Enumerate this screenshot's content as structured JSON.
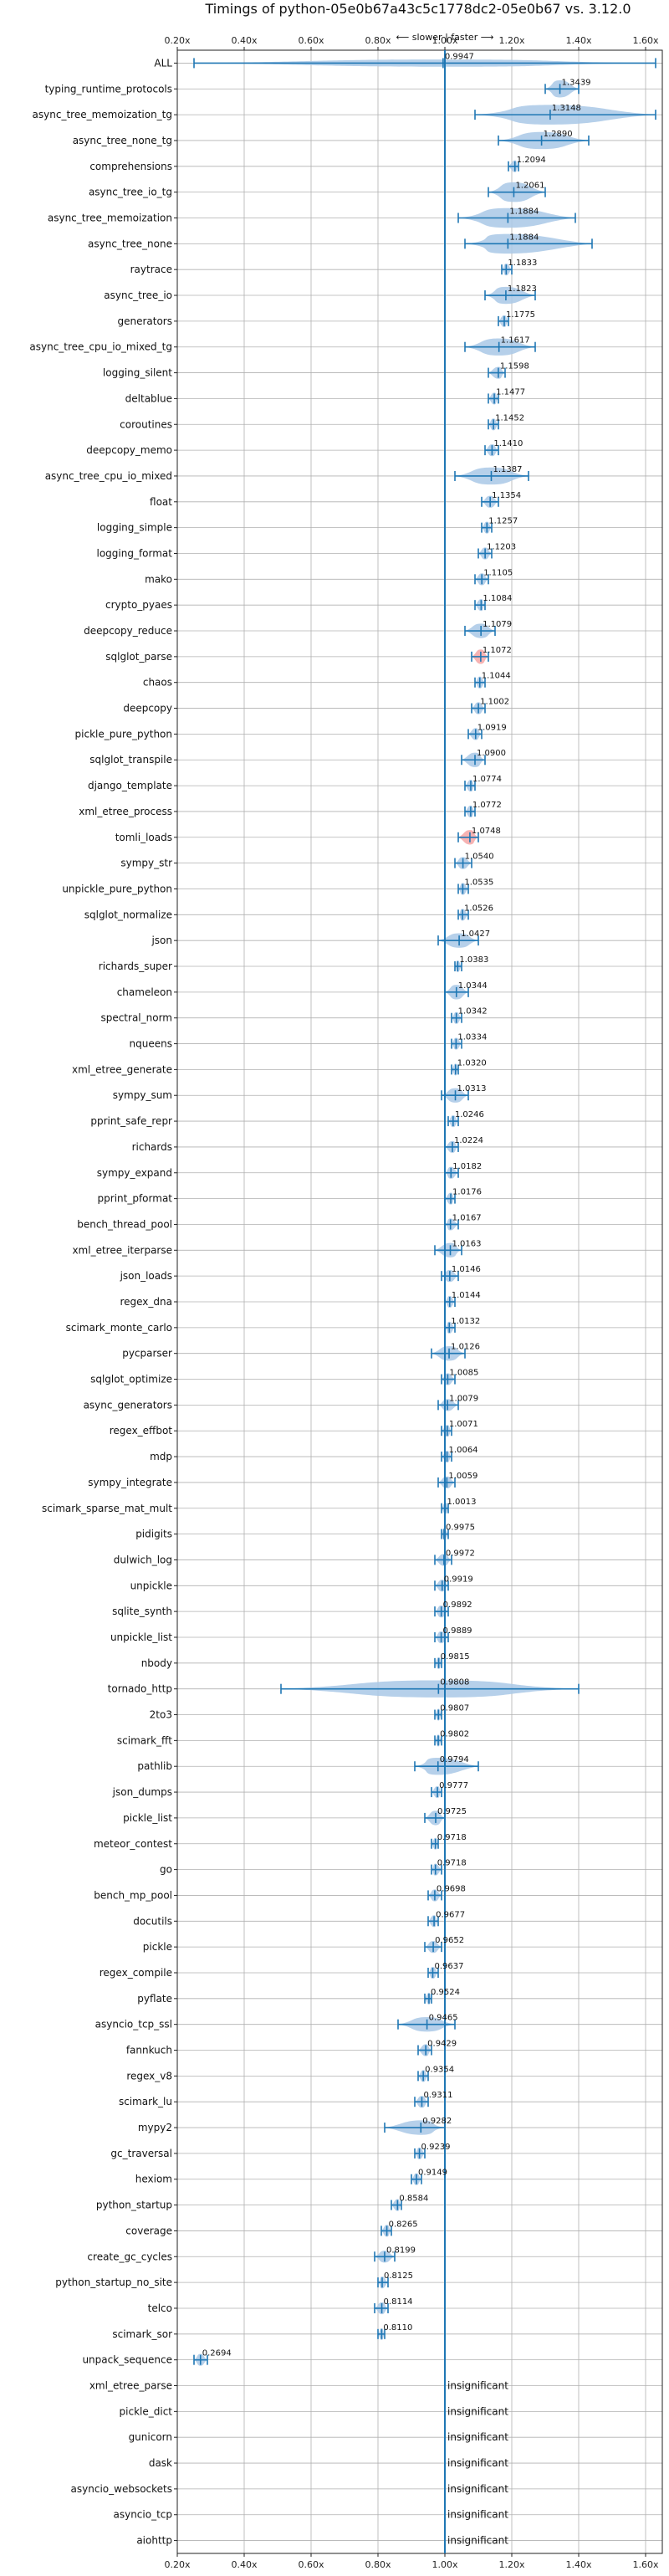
{
  "chart_data": {
    "type": "violin",
    "title": "Timings of python-05e0b67a43c5c1778dc2-05e0b67 vs. 3.12.0",
    "direction_note": "⟵ slower | faster ⟶",
    "xlim": [
      0.2,
      1.65
    ],
    "xticks": [
      0.2,
      0.4,
      0.6,
      0.8,
      1.0,
      1.2,
      1.4,
      1.6
    ],
    "xtick_labels": [
      "0.20x",
      "0.40x",
      "0.60x",
      "0.80x",
      "1.00x",
      "1.20x",
      "1.40x",
      "1.60x"
    ],
    "insignificant_text": "insignificant",
    "colors": {
      "violin": "#a9c8e6",
      "whisker": "#1f77b4",
      "ref_line": "#1f77b4",
      "grid": "#b0b0b0",
      "highlight": "#f4a6a6"
    },
    "benchmarks": [
      {
        "name": "ALL",
        "label": "0.9947",
        "value": 0.9947,
        "lo": 0.25,
        "hi": 1.63,
        "spread": 0.12
      },
      {
        "name": "typing_runtime_protocols",
        "label": "1.3439",
        "value": 1.3439,
        "lo": 1.3,
        "hi": 1.4,
        "spread": 0.5
      },
      {
        "name": "async_tree_memoization_tg",
        "label": "1.3148",
        "value": 1.3148,
        "lo": 1.09,
        "hi": 1.63,
        "spread": 0.6
      },
      {
        "name": "async_tree_none_tg",
        "label": "1.2890",
        "value": 1.289,
        "lo": 1.16,
        "hi": 1.43,
        "spread": 0.5
      },
      {
        "name": "comprehensions",
        "label": "1.2094",
        "value": 1.2094,
        "lo": 1.19,
        "hi": 1.22,
        "spread": 0.3
      },
      {
        "name": "async_tree_io_tg",
        "label": "1.2061",
        "value": 1.2061,
        "lo": 1.13,
        "hi": 1.3,
        "spread": 0.6
      },
      {
        "name": "async_tree_memoization",
        "label": "1.1884",
        "value": 1.1884,
        "lo": 1.04,
        "hi": 1.39,
        "spread": 0.6
      },
      {
        "name": "async_tree_none",
        "label": "1.1884",
        "value": 1.1884,
        "lo": 1.06,
        "hi": 1.44,
        "spread": 0.6
      },
      {
        "name": "raytrace",
        "label": "1.1833",
        "value": 1.1833,
        "lo": 1.17,
        "hi": 1.2,
        "spread": 0.3
      },
      {
        "name": "async_tree_io",
        "label": "1.1823",
        "value": 1.1823,
        "lo": 1.12,
        "hi": 1.27,
        "spread": 0.5
      },
      {
        "name": "generators",
        "label": "1.1775",
        "value": 1.1775,
        "lo": 1.16,
        "hi": 1.19,
        "spread": 0.3
      },
      {
        "name": "async_tree_cpu_io_mixed_tg",
        "label": "1.1617",
        "value": 1.1617,
        "lo": 1.06,
        "hi": 1.27,
        "spread": 0.5
      },
      {
        "name": "logging_silent",
        "label": "1.1598",
        "value": 1.1598,
        "lo": 1.13,
        "hi": 1.18,
        "spread": 0.3
      },
      {
        "name": "deltablue",
        "label": "1.1477",
        "value": 1.1477,
        "lo": 1.13,
        "hi": 1.16,
        "spread": 0.3
      },
      {
        "name": "coroutines",
        "label": "1.1452",
        "value": 1.1452,
        "lo": 1.13,
        "hi": 1.16,
        "spread": 0.3
      },
      {
        "name": "deepcopy_memo",
        "label": "1.1410",
        "value": 1.141,
        "lo": 1.12,
        "hi": 1.16,
        "spread": 0.3
      },
      {
        "name": "async_tree_cpu_io_mixed",
        "label": "1.1387",
        "value": 1.1387,
        "lo": 1.03,
        "hi": 1.25,
        "spread": 0.5
      },
      {
        "name": "float",
        "label": "1.1354",
        "value": 1.1354,
        "lo": 1.11,
        "hi": 1.16,
        "spread": 0.3
      },
      {
        "name": "logging_simple",
        "label": "1.1257",
        "value": 1.1257,
        "lo": 1.11,
        "hi": 1.14,
        "spread": 0.3
      },
      {
        "name": "logging_format",
        "label": "1.1203",
        "value": 1.1203,
        "lo": 1.1,
        "hi": 1.14,
        "spread": 0.3
      },
      {
        "name": "mako",
        "label": "1.1105",
        "value": 1.1105,
        "lo": 1.09,
        "hi": 1.13,
        "spread": 0.3
      },
      {
        "name": "crypto_pyaes",
        "label": "1.1084",
        "value": 1.1084,
        "lo": 1.09,
        "hi": 1.12,
        "spread": 0.3
      },
      {
        "name": "deepcopy_reduce",
        "label": "1.1079",
        "value": 1.1079,
        "lo": 1.06,
        "hi": 1.15,
        "spread": 0.4
      },
      {
        "name": "sqlglot_parse",
        "label": "1.1072",
        "value": 1.1072,
        "lo": 1.08,
        "hi": 1.13,
        "spread": 0.4,
        "highlight": true
      },
      {
        "name": "chaos",
        "label": "1.1044",
        "value": 1.1044,
        "lo": 1.09,
        "hi": 1.12,
        "spread": 0.3
      },
      {
        "name": "deepcopy",
        "label": "1.1002",
        "value": 1.1002,
        "lo": 1.08,
        "hi": 1.12,
        "spread": 0.3
      },
      {
        "name": "pickle_pure_python",
        "label": "1.0919",
        "value": 1.0919,
        "lo": 1.07,
        "hi": 1.11,
        "spread": 0.3
      },
      {
        "name": "sqlglot_transpile",
        "label": "1.0900",
        "value": 1.09,
        "lo": 1.05,
        "hi": 1.12,
        "spread": 0.4
      },
      {
        "name": "django_template",
        "label": "1.0774",
        "value": 1.0774,
        "lo": 1.06,
        "hi": 1.09,
        "spread": 0.3
      },
      {
        "name": "xml_etree_process",
        "label": "1.0772",
        "value": 1.0772,
        "lo": 1.06,
        "hi": 1.09,
        "spread": 0.3
      },
      {
        "name": "tomli_loads",
        "label": "1.0748",
        "value": 1.0748,
        "lo": 1.04,
        "hi": 1.1,
        "spread": 0.4,
        "highlight": true
      },
      {
        "name": "sympy_str",
        "label": "1.0540",
        "value": 1.054,
        "lo": 1.03,
        "hi": 1.08,
        "spread": 0.3
      },
      {
        "name": "unpickle_pure_python",
        "label": "1.0535",
        "value": 1.0535,
        "lo": 1.04,
        "hi": 1.07,
        "spread": 0.3
      },
      {
        "name": "sqlglot_normalize",
        "label": "1.0526",
        "value": 1.0526,
        "lo": 1.04,
        "hi": 1.07,
        "spread": 0.3
      },
      {
        "name": "json",
        "label": "1.0427",
        "value": 1.0427,
        "lo": 0.98,
        "hi": 1.1,
        "spread": 0.4
      },
      {
        "name": "richards_super",
        "label": "1.0383",
        "value": 1.0383,
        "lo": 1.03,
        "hi": 1.05,
        "spread": 0.3
      },
      {
        "name": "chameleon",
        "label": "1.0344",
        "value": 1.0344,
        "lo": 1.0,
        "hi": 1.07,
        "spread": 0.4
      },
      {
        "name": "spectral_norm",
        "label": "1.0342",
        "value": 1.0342,
        "lo": 1.02,
        "hi": 1.05,
        "spread": 0.3
      },
      {
        "name": "nqueens",
        "label": "1.0334",
        "value": 1.0334,
        "lo": 1.02,
        "hi": 1.05,
        "spread": 0.3
      },
      {
        "name": "xml_etree_generate",
        "label": "1.0320",
        "value": 1.032,
        "lo": 1.02,
        "hi": 1.04,
        "spread": 0.3
      },
      {
        "name": "sympy_sum",
        "label": "1.0313",
        "value": 1.0313,
        "lo": 0.99,
        "hi": 1.07,
        "spread": 0.4
      },
      {
        "name": "pprint_safe_repr",
        "label": "1.0246",
        "value": 1.0246,
        "lo": 1.01,
        "hi": 1.04,
        "spread": 0.3
      },
      {
        "name": "richards",
        "label": "1.0224",
        "value": 1.0224,
        "lo": 1.0,
        "hi": 1.04,
        "spread": 0.3
      },
      {
        "name": "sympy_expand",
        "label": "1.0182",
        "value": 1.0182,
        "lo": 1.0,
        "hi": 1.04,
        "spread": 0.3
      },
      {
        "name": "pprint_pformat",
        "label": "1.0176",
        "value": 1.0176,
        "lo": 1.0,
        "hi": 1.03,
        "spread": 0.3
      },
      {
        "name": "bench_thread_pool",
        "label": "1.0167",
        "value": 1.0167,
        "lo": 1.0,
        "hi": 1.04,
        "spread": 0.3
      },
      {
        "name": "xml_etree_iterparse",
        "label": "1.0163",
        "value": 1.0163,
        "lo": 0.97,
        "hi": 1.05,
        "spread": 0.4
      },
      {
        "name": "json_loads",
        "label": "1.0146",
        "value": 1.0146,
        "lo": 0.99,
        "hi": 1.04,
        "spread": 0.3
      },
      {
        "name": "regex_dna",
        "label": "1.0144",
        "value": 1.0144,
        "lo": 1.0,
        "hi": 1.03,
        "spread": 0.3
      },
      {
        "name": "scimark_monte_carlo",
        "label": "1.0132",
        "value": 1.0132,
        "lo": 1.0,
        "hi": 1.03,
        "spread": 0.3
      },
      {
        "name": "pycparser",
        "label": "1.0126",
        "value": 1.0126,
        "lo": 0.96,
        "hi": 1.06,
        "spread": 0.4
      },
      {
        "name": "sqlglot_optimize",
        "label": "1.0085",
        "value": 1.0085,
        "lo": 0.99,
        "hi": 1.03,
        "spread": 0.3
      },
      {
        "name": "async_generators",
        "label": "1.0079",
        "value": 1.0079,
        "lo": 0.98,
        "hi": 1.04,
        "spread": 0.3
      },
      {
        "name": "regex_effbot",
        "label": "1.0071",
        "value": 1.0071,
        "lo": 0.99,
        "hi": 1.02,
        "spread": 0.3
      },
      {
        "name": "mdp",
        "label": "1.0064",
        "value": 1.0064,
        "lo": 0.99,
        "hi": 1.02,
        "spread": 0.3
      },
      {
        "name": "sympy_integrate",
        "label": "1.0059",
        "value": 1.0059,
        "lo": 0.98,
        "hi": 1.03,
        "spread": 0.3
      },
      {
        "name": "scimark_sparse_mat_mult",
        "label": "1.0013",
        "value": 1.0013,
        "lo": 0.99,
        "hi": 1.01,
        "spread": 0.3
      },
      {
        "name": "pidigits",
        "label": "0.9975",
        "value": 0.9975,
        "lo": 0.99,
        "hi": 1.01,
        "spread": 0.3
      },
      {
        "name": "dulwich_log",
        "label": "0.9972",
        "value": 0.9972,
        "lo": 0.97,
        "hi": 1.02,
        "spread": 0.3
      },
      {
        "name": "unpickle",
        "label": "0.9919",
        "value": 0.9919,
        "lo": 0.97,
        "hi": 1.01,
        "spread": 0.3
      },
      {
        "name": "sqlite_synth",
        "label": "0.9892",
        "value": 0.9892,
        "lo": 0.97,
        "hi": 1.01,
        "spread": 0.3
      },
      {
        "name": "unpickle_list",
        "label": "0.9889",
        "value": 0.9889,
        "lo": 0.97,
        "hi": 1.01,
        "spread": 0.3
      },
      {
        "name": "nbody",
        "label": "0.9815",
        "value": 0.9815,
        "lo": 0.97,
        "hi": 0.99,
        "spread": 0.3
      },
      {
        "name": "tornado_http",
        "label": "0.9808",
        "value": 0.9808,
        "lo": 0.51,
        "hi": 1.4,
        "spread": 0.5
      },
      {
        "name": "2to3",
        "label": "0.9807",
        "value": 0.9807,
        "lo": 0.97,
        "hi": 0.99,
        "spread": 0.3
      },
      {
        "name": "scimark_fft",
        "label": "0.9802",
        "value": 0.9802,
        "lo": 0.97,
        "hi": 0.99,
        "spread": 0.3
      },
      {
        "name": "pathlib",
        "label": "0.9794",
        "value": 0.9794,
        "lo": 0.91,
        "hi": 1.1,
        "spread": 0.5
      },
      {
        "name": "json_dumps",
        "label": "0.9777",
        "value": 0.9777,
        "lo": 0.96,
        "hi": 0.99,
        "spread": 0.3
      },
      {
        "name": "pickle_list",
        "label": "0.9725",
        "value": 0.9725,
        "lo": 0.94,
        "hi": 1.0,
        "spread": 0.4
      },
      {
        "name": "meteor_contest",
        "label": "0.9718",
        "value": 0.9718,
        "lo": 0.96,
        "hi": 0.98,
        "spread": 0.3
      },
      {
        "name": "go",
        "label": "0.9718",
        "value": 0.9718,
        "lo": 0.96,
        "hi": 0.99,
        "spread": 0.3
      },
      {
        "name": "bench_mp_pool",
        "label": "0.9698",
        "value": 0.9698,
        "lo": 0.95,
        "hi": 0.99,
        "spread": 0.3
      },
      {
        "name": "docutils",
        "label": "0.9677",
        "value": 0.9677,
        "lo": 0.95,
        "hi": 0.98,
        "spread": 0.3
      },
      {
        "name": "pickle",
        "label": "0.9652",
        "value": 0.9652,
        "lo": 0.94,
        "hi": 0.99,
        "spread": 0.3
      },
      {
        "name": "regex_compile",
        "label": "0.9637",
        "value": 0.9637,
        "lo": 0.95,
        "hi": 0.98,
        "spread": 0.3
      },
      {
        "name": "pyflate",
        "label": "0.9524",
        "value": 0.9524,
        "lo": 0.94,
        "hi": 0.96,
        "spread": 0.3
      },
      {
        "name": "asyncio_tcp_ssl",
        "label": "0.9465",
        "value": 0.9465,
        "lo": 0.86,
        "hi": 1.03,
        "spread": 0.4
      },
      {
        "name": "fannkuch",
        "label": "0.9429",
        "value": 0.9429,
        "lo": 0.92,
        "hi": 0.96,
        "spread": 0.3
      },
      {
        "name": "regex_v8",
        "label": "0.9354",
        "value": 0.9354,
        "lo": 0.92,
        "hi": 0.95,
        "spread": 0.3
      },
      {
        "name": "scimark_lu",
        "label": "0.9311",
        "value": 0.9311,
        "lo": 0.91,
        "hi": 0.95,
        "spread": 0.3
      },
      {
        "name": "mypy2",
        "label": "0.9282",
        "value": 0.9282,
        "lo": 0.82,
        "hi": 1.0,
        "spread": 0.4
      },
      {
        "name": "gc_traversal",
        "label": "0.9239",
        "value": 0.9239,
        "lo": 0.91,
        "hi": 0.94,
        "spread": 0.3
      },
      {
        "name": "hexiom",
        "label": "0.9149",
        "value": 0.9149,
        "lo": 0.9,
        "hi": 0.93,
        "spread": 0.3
      },
      {
        "name": "python_startup",
        "label": "0.8584",
        "value": 0.8584,
        "lo": 0.84,
        "hi": 0.87,
        "spread": 0.3
      },
      {
        "name": "coverage",
        "label": "0.8265",
        "value": 0.8265,
        "lo": 0.81,
        "hi": 0.84,
        "spread": 0.3
      },
      {
        "name": "create_gc_cycles",
        "label": "0.8199",
        "value": 0.8199,
        "lo": 0.79,
        "hi": 0.85,
        "spread": 0.3
      },
      {
        "name": "python_startup_no_site",
        "label": "0.8125",
        "value": 0.8125,
        "lo": 0.8,
        "hi": 0.83,
        "spread": 0.3
      },
      {
        "name": "telco",
        "label": "0.8114",
        "value": 0.8114,
        "lo": 0.79,
        "hi": 0.83,
        "spread": 0.3
      },
      {
        "name": "scimark_sor",
        "label": "0.8110",
        "value": 0.811,
        "lo": 0.8,
        "hi": 0.82,
        "spread": 0.3
      },
      {
        "name": "unpack_sequence",
        "label": "0.2694",
        "value": 0.2694,
        "lo": 0.25,
        "hi": 0.29,
        "spread": 0.3
      },
      {
        "name": "xml_etree_parse",
        "insignificant": true
      },
      {
        "name": "pickle_dict",
        "insignificant": true
      },
      {
        "name": "gunicorn",
        "insignificant": true
      },
      {
        "name": "dask",
        "insignificant": true
      },
      {
        "name": "asyncio_websockets",
        "insignificant": true
      },
      {
        "name": "asyncio_tcp",
        "insignificant": true
      },
      {
        "name": "aiohttp",
        "insignificant": true
      }
    ]
  }
}
